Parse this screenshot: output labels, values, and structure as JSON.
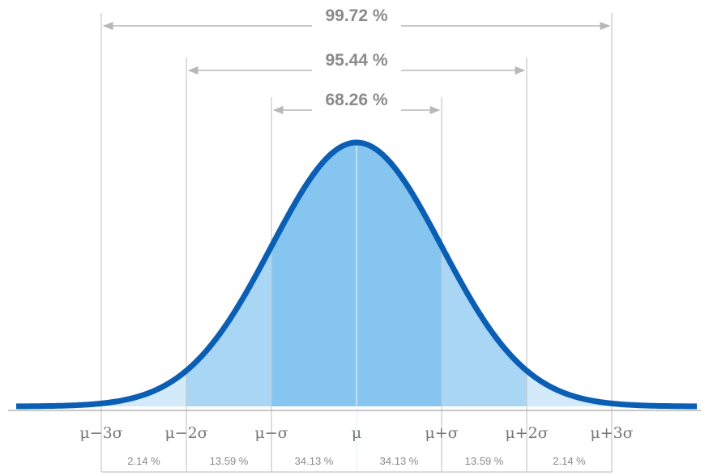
{
  "chart_data": {
    "type": "area",
    "title": "",
    "xlabel": "",
    "ylabel": "",
    "distribution": "normal",
    "x_range_sigma": [
      -4,
      4
    ],
    "colors": {
      "curve": "#0a5fb4",
      "band_1sigma": "#86c5ef",
      "band_2sigma": "#a9d6f5",
      "band_3sigma": "#d3eafb",
      "gridline": "#c8c8c8",
      "arrow": "#b8b8b8",
      "text": "#8a8a8a"
    },
    "ticks": [
      {
        "sigma": -3,
        "label": "μ−3σ"
      },
      {
        "sigma": -2,
        "label": "μ−2σ"
      },
      {
        "sigma": -1,
        "label": "μ−σ"
      },
      {
        "sigma": 0,
        "label": "μ"
      },
      {
        "sigma": 1,
        "label": "μ+σ"
      },
      {
        "sigma": 2,
        "label": "μ+2σ"
      },
      {
        "sigma": 3,
        "label": "μ+3σ"
      }
    ],
    "ranges": [
      {
        "from": -3,
        "to": 3,
        "label": "99.72 %"
      },
      {
        "from": -2,
        "to": 2,
        "label": "95.44 %"
      },
      {
        "from": -1,
        "to": 1,
        "label": "68.26 %"
      }
    ],
    "segments": [
      {
        "from": -3,
        "to": -2,
        "value": 2.14,
        "label": "2.14 %"
      },
      {
        "from": -2,
        "to": -1,
        "value": 13.59,
        "label": "13.59 %"
      },
      {
        "from": -1,
        "to": 0,
        "value": 34.13,
        "label": "34.13 %"
      },
      {
        "from": 0,
        "to": 1,
        "value": 34.13,
        "label": "34.13 %"
      },
      {
        "from": 1,
        "to": 2,
        "value": 13.59,
        "label": "13.59 %"
      },
      {
        "from": 2,
        "to": 3,
        "value": 2.14,
        "label": "2.14 %"
      }
    ]
  }
}
